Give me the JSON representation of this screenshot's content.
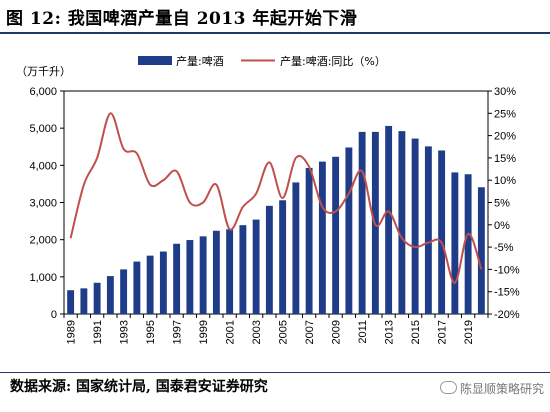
{
  "page": {
    "title": "图 12:  我国啤酒产量自 2013 年起开始下滑",
    "source": "数据来源:  国家统计局,  国泰君安证券研究",
    "watermark": "陈显顺策略研究"
  },
  "chart_data": {
    "type": "bar+line",
    "unit_label": "（万千升）",
    "x": [
      "1989",
      "1990",
      "1991",
      "1992",
      "1993",
      "1994",
      "1995",
      "1996",
      "1997",
      "1998",
      "1999",
      "2000",
      "2001",
      "2002",
      "2003",
      "2004",
      "2005",
      "2006",
      "2007",
      "2008",
      "2009",
      "2010",
      "2011",
      "2012",
      "2013",
      "2014",
      "2015",
      "2016",
      "2017",
      "2018",
      "2019",
      "2020"
    ],
    "x_tick_labels": [
      "1989",
      "1991",
      "1993",
      "1995",
      "1997",
      "1999",
      "2001",
      "2003",
      "2005",
      "2007",
      "2009",
      "2011",
      "2013",
      "2015",
      "2017",
      "2019"
    ],
    "series": [
      {
        "name": "产量:啤酒",
        "kind": "bar",
        "axis": "left",
        "color": "#1f3c88",
        "values": [
          640,
          690,
          840,
          1020,
          1200,
          1410,
          1570,
          1680,
          1890,
          1990,
          2090,
          2240,
          2280,
          2390,
          2540,
          2910,
          3060,
          3540,
          3930,
          4100,
          4230,
          4480,
          4900,
          4900,
          5060,
          4920,
          4720,
          4510,
          4400,
          3810,
          3760,
          3410
        ]
      },
      {
        "name": "产量:啤酒:同比（%）",
        "kind": "line",
        "axis": "right",
        "color": "#c0504d",
        "values": [
          -3,
          9,
          15,
          25,
          17,
          16,
          9,
          10,
          12,
          5,
          5,
          9,
          -1,
          4,
          7,
          14,
          6,
          15,
          13,
          4,
          3,
          7,
          12,
          0,
          3,
          -3,
          -5,
          -4,
          -4,
          -13,
          -2,
          -10
        ]
      }
    ],
    "y_left": {
      "min": 0,
      "max": 6000,
      "ticks": [
        "0",
        "1,000",
        "2,000",
        "3,000",
        "4,000",
        "5,000",
        "6,000"
      ]
    },
    "y_right": {
      "min": -20,
      "max": 30,
      "ticks": [
        "-20%",
        "-15%",
        "-10%",
        "-5%",
        "0%",
        "5%",
        "10%",
        "15%",
        "20%",
        "25%",
        "30%"
      ]
    },
    "legend": {
      "placement": "top"
    }
  }
}
